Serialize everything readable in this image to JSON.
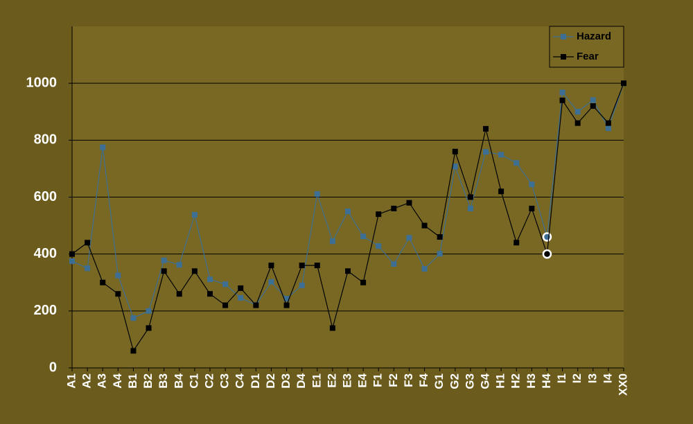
{
  "chart_data": {
    "type": "line",
    "categories": [
      "A1",
      "A2",
      "A3",
      "A4",
      "B1",
      "B2",
      "B3",
      "B4",
      "C1",
      "C2",
      "C3",
      "C4",
      "D1",
      "D2",
      "D3",
      "D4",
      "E1",
      "E2",
      "E3",
      "E4",
      "F1",
      "F2",
      "F3",
      "F4",
      "G1",
      "G2",
      "G3",
      "G4",
      "H1",
      "H2",
      "H3",
      "H4",
      "I1",
      "I2",
      "I3",
      "I4",
      "XX0"
    ],
    "series": [
      {
        "name": "Hazard",
        "color": "#3d6e94",
        "values": [
          375,
          350,
          775,
          325,
          175,
          200,
          378,
          362,
          538,
          311,
          294,
          246,
          221,
          302,
          243,
          290,
          611,
          445,
          550,
          462,
          428,
          365,
          457,
          348,
          401,
          708,
          560,
          759,
          749,
          720,
          645,
          460,
          968,
          900,
          941,
          842,
          1000
        ]
      },
      {
        "name": "Fear",
        "color": "#000000",
        "values": [
          400,
          440,
          300,
          260,
          60,
          140,
          340,
          260,
          340,
          260,
          220,
          280,
          220,
          360,
          220,
          360,
          360,
          140,
          340,
          300,
          540,
          560,
          580,
          500,
          460,
          760,
          600,
          840,
          620,
          440,
          560,
          400,
          940,
          860,
          920,
          860,
          1000
        ]
      }
    ],
    "highlight_category": "H4",
    "ylim": [
      0,
      1200
    ],
    "yticks": [
      0,
      200,
      400,
      600,
      800,
      1000
    ],
    "grid": true,
    "legend": "top-right",
    "background": "#6b5b1c",
    "plot_background": "#786824"
  }
}
